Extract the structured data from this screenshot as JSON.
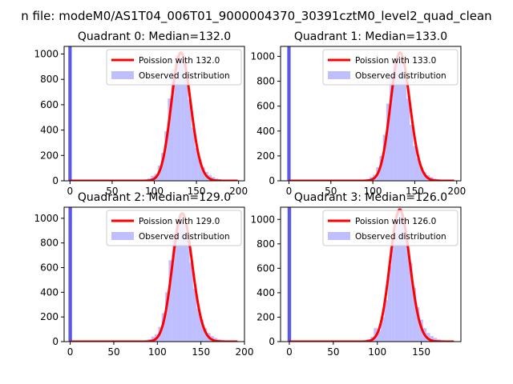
{
  "figure": {
    "suptitle": "n file: modeM0/AS1T04_006T01_9000004370_30391cztM0_level2_quad_clean"
  },
  "colors": {
    "hist": "#8080ff",
    "hist_opacity": 0.5,
    "bin0": "#5a5ae6",
    "fit": "#ff0000"
  },
  "chart_data": [
    {
      "type": "bar",
      "title": "Quadrant 0: Median=132.0",
      "median": 132.0,
      "xlim": [
        -7,
        207
      ],
      "ylim": [
        0,
        1060
      ],
      "xticks": [
        0,
        50,
        100,
        150,
        200
      ],
      "yticks": [
        0,
        200,
        400,
        600,
        800,
        1000
      ],
      "legend": {
        "position": "top-right",
        "fit_label": "Poission with 132.0",
        "hist_label": "Observed distribution"
      },
      "spike": {
        "x": 0,
        "value": 1060
      },
      "bins": {
        "x": [
          78,
          82,
          86,
          90,
          94,
          98,
          102,
          106,
          110,
          114,
          118,
          122,
          126,
          130,
          134,
          138,
          142,
          146,
          150,
          154,
          158,
          162,
          166,
          170,
          174,
          178,
          182,
          186,
          190,
          194,
          198
        ],
        "values": [
          2,
          4,
          6,
          10,
          20,
          40,
          55,
          120,
          220,
          390,
          650,
          880,
          990,
          1000,
          930,
          820,
          640,
          420,
          260,
          170,
          110,
          70,
          45,
          30,
          18,
          12,
          8,
          5,
          3,
          2,
          1
        ]
      },
      "fit": {
        "lambda": 132.0,
        "peak": 1010
      }
    },
    {
      "type": "bar",
      "title": "Quadrant 1: Median=133.0",
      "median": 133.0,
      "xlim": [
        -10,
        205
      ],
      "ylim": [
        0,
        1080
      ],
      "xticks": [
        0,
        50,
        100,
        150,
        200
      ],
      "yticks": [
        0,
        200,
        400,
        600,
        800,
        1000
      ],
      "legend": {
        "position": "top-right",
        "fit_label": "Poission with 133.0",
        "hist_label": "Observed distribution"
      },
      "spike": {
        "x": 0,
        "value": 1080
      },
      "bins": {
        "x": [
          82,
          86,
          90,
          94,
          98,
          102,
          106,
          110,
          114,
          118,
          122,
          126,
          130,
          134,
          138,
          142,
          146,
          150,
          154,
          158,
          162,
          166,
          170,
          174,
          178,
          182,
          186,
          190,
          194
        ],
        "values": [
          2,
          4,
          8,
          15,
          30,
          50,
          110,
          200,
          370,
          620,
          850,
          970,
          1010,
          950,
          850,
          660,
          450,
          280,
          180,
          110,
          70,
          45,
          30,
          18,
          12,
          8,
          5,
          3,
          1
        ]
      },
      "fit": {
        "lambda": 133.0,
        "peak": 1030
      }
    },
    {
      "type": "bar",
      "title": "Quadrant 2: Median=129.0",
      "median": 129.0,
      "xlim": [
        -7,
        200
      ],
      "ylim": [
        0,
        1090
      ],
      "xticks": [
        0,
        50,
        100,
        150,
        200
      ],
      "yticks": [
        0,
        200,
        400,
        600,
        800,
        1000
      ],
      "legend": {
        "position": "top-right",
        "fit_label": "Poission with 129.0",
        "hist_label": "Observed distribution"
      },
      "spike": {
        "x": 0,
        "value": 1090
      },
      "bins": {
        "x": [
          75,
          79,
          83,
          87,
          91,
          95,
          99,
          103,
          107,
          111,
          115,
          119,
          123,
          127,
          131,
          135,
          139,
          143,
          147,
          151,
          155,
          159,
          163,
          167,
          171,
          175,
          179,
          183,
          187
        ],
        "values": [
          2,
          4,
          6,
          10,
          20,
          40,
          60,
          120,
          230,
          400,
          660,
          880,
          1000,
          1030,
          960,
          840,
          640,
          430,
          270,
          180,
          110,
          70,
          45,
          30,
          18,
          12,
          8,
          5,
          3
        ]
      },
      "fit": {
        "lambda": 129.0,
        "peak": 1040
      }
    },
    {
      "type": "bar",
      "title": "Quadrant 3: Median=126.0",
      "median": 126.0,
      "xlim": [
        -10,
        195
      ],
      "ylim": [
        0,
        1100
      ],
      "xticks": [
        0,
        50,
        100,
        150
      ],
      "yticks": [
        0,
        200,
        400,
        600,
        800,
        1000
      ],
      "legend": {
        "position": "top-right",
        "fit_label": "Poission with 126.0",
        "hist_label": "Observed distribution"
      },
      "spike": {
        "x": 0,
        "value": 1100
      },
      "bins": {
        "x": [
          74,
          78,
          82,
          86,
          90,
          94,
          98,
          102,
          106,
          110,
          114,
          118,
          122,
          126,
          130,
          134,
          138,
          142,
          146,
          150,
          154,
          158,
          162,
          166,
          170,
          174,
          178,
          182,
          186
        ],
        "values": [
          2,
          4,
          6,
          10,
          20,
          40,
          110,
          90,
          200,
          340,
          620,
          860,
          1000,
          1090,
          1000,
          860,
          640,
          440,
          280,
          180,
          110,
          70,
          45,
          30,
          18,
          12,
          8,
          5,
          3
        ]
      },
      "fit": {
        "lambda": 126.0,
        "peak": 1080
      }
    }
  ]
}
